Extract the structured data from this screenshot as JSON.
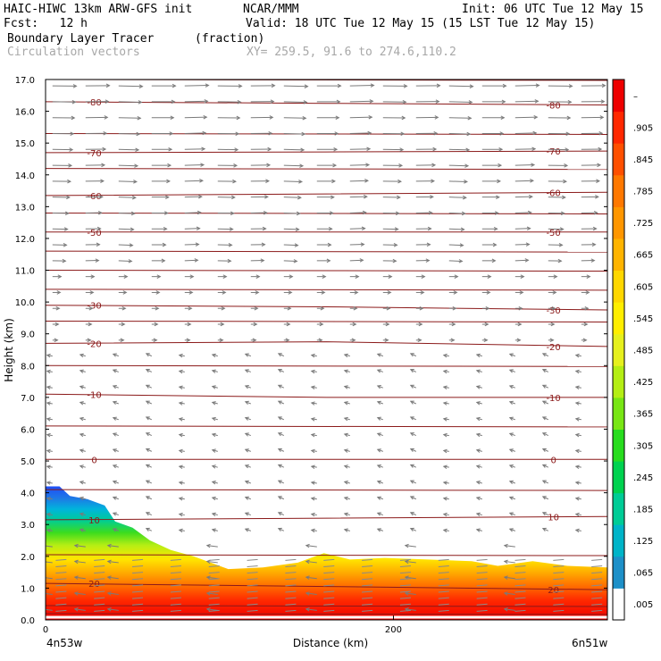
{
  "header": {
    "model": "HAIC-HIWC 13km ARW-GFS init",
    "org": "NCAR/MMM",
    "init": "Init: 06 UTC Tue 12 May 15",
    "fcst": "Fcst:   12 h",
    "valid": "Valid: 18 UTC Tue 12 May 15 (15 LST Tue 12 May 15)",
    "field": "Boundary Layer Tracer",
    "units": "(fraction)",
    "vectors": "Circulation vectors",
    "xy": "XY= 259.5, 91.6 to 274.6,110.2"
  },
  "chart_data": {
    "type": "heatmap",
    "ylabel": "Height (km)",
    "xlabel": "Distance (km)",
    "x_left_label": "4n53w",
    "x_right_label": "6n51w",
    "xlim": [
      0,
      323
    ],
    "ylim": [
      0,
      17
    ],
    "yticks": [
      "0.0",
      "1.0",
      "2.0",
      "3.0",
      "4.0",
      "5.0",
      "6.0",
      "7.0",
      "8.0",
      "9.0",
      "10.0",
      "11.0",
      "12.0",
      "13.0",
      "14.0",
      "15.0",
      "16.0",
      "17.0"
    ],
    "xticks": [
      {
        "value": 0,
        "label": "0"
      },
      {
        "value": 200,
        "label": "200"
      }
    ],
    "colorbar_labels": [
      ".005",
      ".065",
      ".125",
      ".185",
      ".245",
      ".305",
      ".365",
      ".425",
      ".485",
      ".545",
      ".605",
      ".665",
      ".725",
      ".785",
      ".845",
      ".905",
      "–"
    ],
    "colorbar_colors": [
      "#ffffff",
      "#1e90c8",
      "#00b4c8",
      "#00cc96",
      "#00d250",
      "#28dc1e",
      "#78e614",
      "#b4ee14",
      "#e6f01e",
      "#ffee00",
      "#ffd700",
      "#ffb400",
      "#ff9600",
      "#ff7800",
      "#ff5000",
      "#ff2800",
      "#ee0000"
    ],
    "boundary_layer_top_km": [
      [
        0,
        4.2
      ],
      [
        8,
        4.2
      ],
      [
        14,
        3.9
      ],
      [
        24,
        3.8
      ],
      [
        34,
        3.6
      ],
      [
        40,
        3.1
      ],
      [
        50,
        2.9
      ],
      [
        60,
        2.5
      ],
      [
        72,
        2.2
      ],
      [
        85,
        2.0
      ],
      [
        95,
        1.8
      ],
      [
        105,
        1.6
      ],
      [
        125,
        1.65
      ],
      [
        145,
        1.8
      ],
      [
        160,
        2.1
      ],
      [
        175,
        1.9
      ],
      [
        195,
        1.95
      ],
      [
        220,
        1.9
      ],
      [
        245,
        1.85
      ],
      [
        260,
        1.7
      ],
      [
        280,
        1.85
      ],
      [
        300,
        1.7
      ],
      [
        323,
        1.65
      ]
    ],
    "temperature_contours_c": [
      {
        "value": -80,
        "label": "-80",
        "y": [
          16.3,
          16.25,
          16.2
        ]
      },
      {
        "value": -70,
        "label": "-70",
        "y": [
          14.7,
          14.72,
          14.75
        ]
      },
      {
        "value": -60,
        "label": "-60",
        "y": [
          13.35,
          13.4,
          13.45
        ]
      },
      {
        "value": -50,
        "label": "-50",
        "y": [
          12.2,
          12.2,
          12.2
        ]
      },
      {
        "value": -30,
        "label": "-30",
        "y": [
          9.9,
          9.85,
          9.75
        ]
      },
      {
        "value": -20,
        "label": "-20",
        "y": [
          8.7,
          8.75,
          8.6
        ]
      },
      {
        "value": -10,
        "label": "-10",
        "y": [
          7.1,
          7.0,
          7.0
        ]
      },
      {
        "value": 0,
        "label": "0",
        "y": [
          5.05,
          5.05,
          5.05
        ]
      },
      {
        "value": 10,
        "label": "10",
        "y": [
          3.15,
          3.2,
          3.25
        ]
      },
      {
        "value": 20,
        "label": "20",
        "y": [
          1.15,
          1.05,
          0.95
        ]
      }
    ],
    "extra_contours_y": [
      17.0,
      15.3,
      14.2,
      12.8,
      11.6,
      11.0,
      10.4,
      9.4,
      8.0,
      6.1,
      4.1,
      2.05,
      0.45,
      0.2
    ]
  }
}
